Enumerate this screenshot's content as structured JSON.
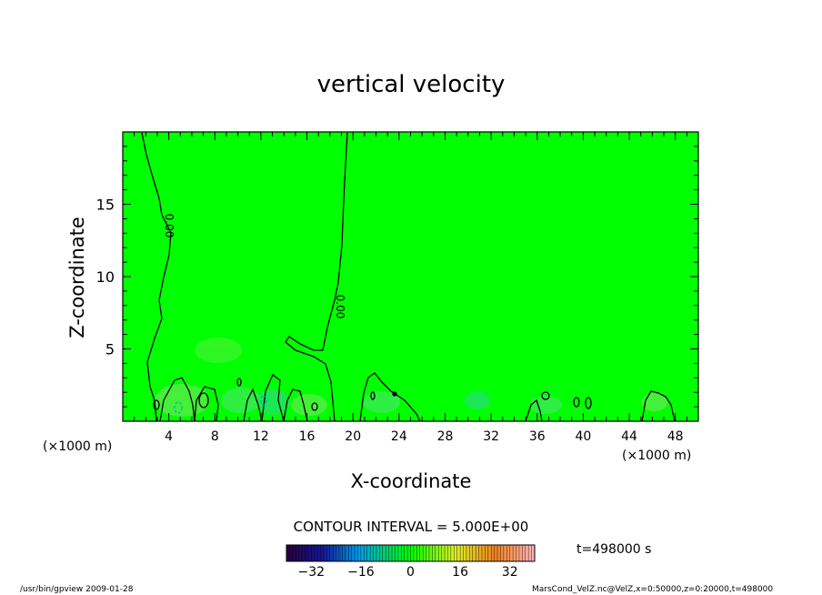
{
  "chart_data": {
    "type": "heatmap",
    "title": "vertical velocity",
    "xlabel": "X-coordinate",
    "ylabel": "Z-coordinate",
    "x_unit": "(×1000 m)",
    "x_unit_left": "(×1000 m)",
    "xlim": [
      0,
      50
    ],
    "ylim": [
      0,
      20
    ],
    "x_ticks": [
      4,
      8,
      12,
      16,
      20,
      24,
      28,
      32,
      36,
      40,
      44,
      48
    ],
    "y_ticks": [
      5,
      10,
      15
    ],
    "contour_label": "0.00",
    "contour_interval_text": "CONTOUR INTERVAL = 5.000E+00",
    "colorbar": {
      "min": -40,
      "max": 40,
      "ticks": [
        -32,
        -16,
        0,
        16,
        32
      ],
      "tick_labels": [
        "−32",
        "−16",
        "0",
        "16",
        "32"
      ]
    },
    "field_color": "#00ff00",
    "time_label": "t=498000 s"
  },
  "footer": {
    "left": "/usr/bin/gpview  2009-01-28",
    "right": "MarsCond_VelZ.nc@VelZ,x=0:50000,z=0:20000,t=498000"
  }
}
